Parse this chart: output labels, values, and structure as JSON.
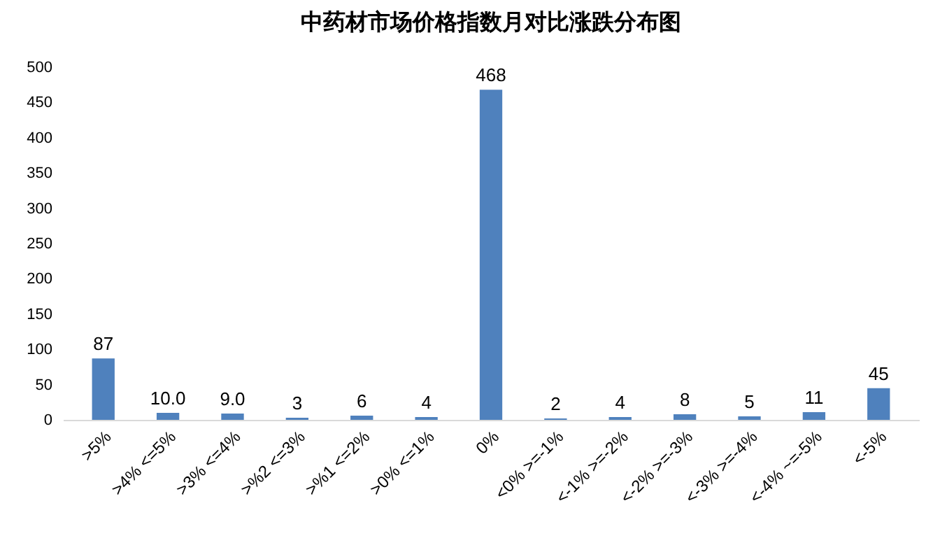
{
  "chart_data": {
    "type": "bar",
    "title": "中药材市场价格指数月对比涨跌分布图",
    "categories": [
      ">5%",
      ">4% <=5%",
      ">3% <=4%",
      ">%2 <=3%",
      ">%1 <=2%",
      ">0% <=1%",
      "0%",
      "<0% >=-1%",
      "<-1% >=-2%",
      "<-2% >=-3%",
      "<-3% >=-4%",
      "<-4% ~=-5%",
      "<-5%"
    ],
    "values": [
      87,
      10,
      9,
      3,
      6,
      4,
      468,
      2,
      4,
      8,
      5,
      11,
      45
    ],
    "value_labels": [
      "87",
      "10.0",
      "9.0",
      "3",
      "6",
      "4",
      "468",
      "2",
      "4",
      "8",
      "5",
      "11",
      "45"
    ],
    "color": "#4f81bd",
    "ylim": [
      0,
      500
    ],
    "yticks": [
      0,
      50,
      100,
      150,
      200,
      250,
      300,
      350,
      400,
      450,
      500
    ],
    "grid": false
  }
}
